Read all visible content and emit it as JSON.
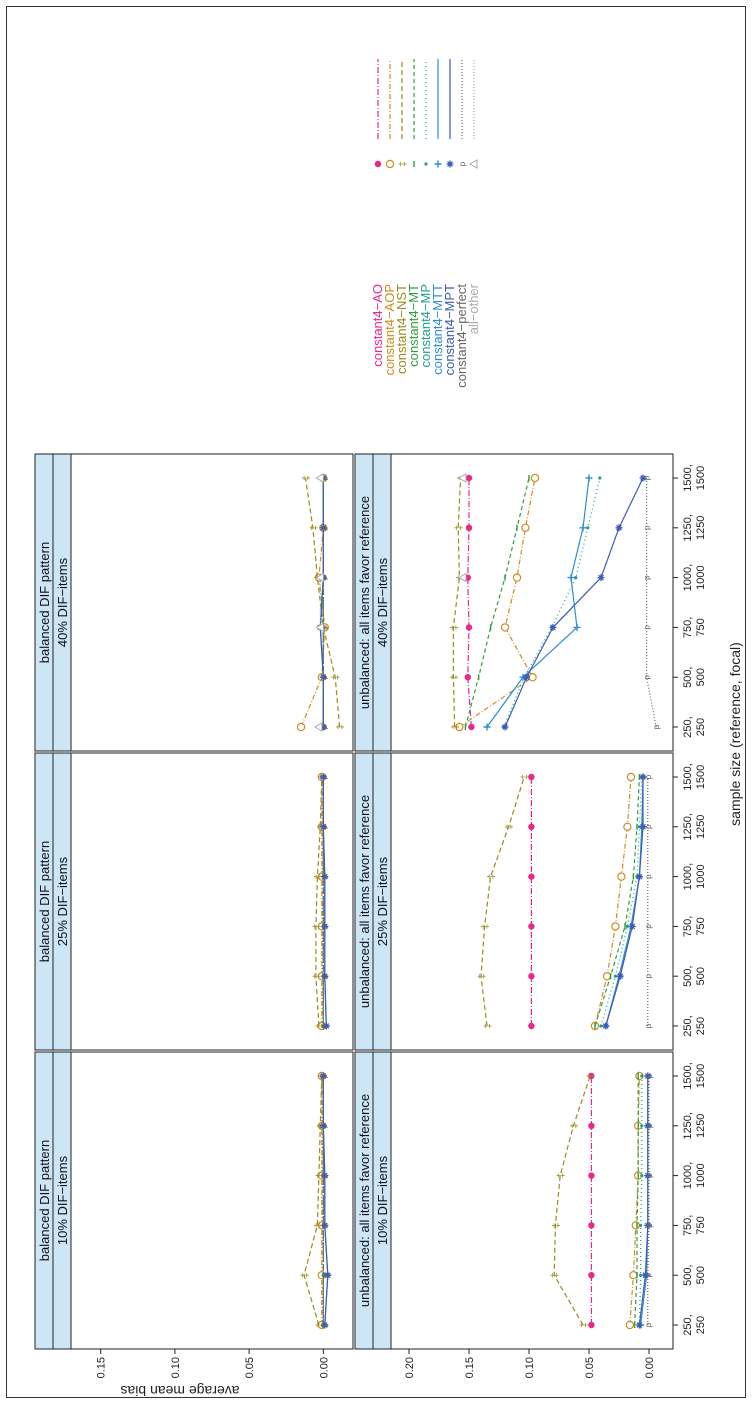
{
  "chart_data": {
    "type": "line",
    "orientation": "rotated 90 degrees counter-clockwise",
    "xlabel": "sample size (reference, focal)",
    "ylabel": "average mean bias",
    "x_tick_labels": [
      [
        "250,",
        "250"
      ],
      [
        "500,",
        "500"
      ],
      [
        "750,",
        "750"
      ],
      [
        "1000,",
        "1000"
      ],
      [
        "1250,",
        "1250"
      ],
      [
        "1500,",
        "1500"
      ]
    ],
    "y_tick_labels": {
      "balanced": [
        "0.00",
        "0.05",
        "0.10",
        "0.15"
      ],
      "unbalanced": [
        "0.00",
        "0.05",
        "0.10",
        "0.15",
        "0.20"
      ]
    },
    "ylim_balanced": [
      -0.02,
      0.17
    ],
    "ylim_unbalanced": [
      -0.02,
      0.215
    ],
    "legend": {
      "placement": "right",
      "entries": [
        {
          "label": "constant4−AO",
          "color": "#e7298a",
          "dash": "6,2,1,2",
          "symbol": "dot"
        },
        {
          "label": "constant4−AOP",
          "color": "#d18b1f",
          "dash": "5,2,1,2",
          "symbol": "circle"
        },
        {
          "label": "constant4−NST",
          "color": "#9a8a1a",
          "dash": "5,3",
          "symbol": "dagger"
        },
        {
          "label": "constant4−MT",
          "color": "#2e9e3a",
          "dash": "4,3",
          "symbol": "dash"
        },
        {
          "label": "constant4−MP",
          "color": "#1fa187",
          "dash": "1,3",
          "symbol": "point"
        },
        {
          "label": "constant4−MTT",
          "color": "#2c8fd1",
          "dash": "",
          "symbol": "plus"
        },
        {
          "label": "constant4−MPT",
          "color": "#3b5bb7",
          "dash": "",
          "symbol": "asterisk"
        },
        {
          "label": "constant4−perfect",
          "color": "#666666",
          "dash": "1,2",
          "symbol": "p"
        },
        {
          "label": "all−other",
          "color": "#aaaaaa",
          "dash": "1,2",
          "symbol": "triangle"
        }
      ]
    },
    "panels": [
      {
        "row": "balanced",
        "strip": [
          "balanced DIF pattern",
          "10% DIF−items"
        ],
        "series": {
          "constant4−AO": [
            0.0,
            0.0,
            0.0,
            0.0,
            0.0,
            0.0
          ],
          "constant4−AOP": [
            0.001,
            0.001,
            0.001,
            0.001,
            0.001,
            0.001
          ],
          "constant4−NST": [
            0.003,
            0.013,
            0.004,
            0.003,
            0.002,
            0.001
          ],
          "constant4−MT": [
            0.0,
            0.0,
            0.0,
            0.0,
            0.0,
            0.0
          ],
          "constant4−MP": [
            0.0,
            0.0,
            0.0,
            0.0,
            0.0,
            0.0
          ],
          "constant4−MTT": [
            -0.001,
            -0.003,
            -0.001,
            -0.001,
            0.0,
            0.0
          ],
          "constant4−MPT": [
            -0.001,
            -0.003,
            -0.001,
            -0.001,
            0.0,
            0.0
          ],
          "constant4−perfect": [
            0.0,
            0.0,
            0.0,
            0.0,
            0.0,
            0.0
          ]
        }
      },
      {
        "row": "balanced",
        "strip": [
          "balanced DIF pattern",
          "25% DIF−items"
        ],
        "series": {
          "constant4−AO": [
            0.0,
            0.0,
            0.0,
            0.0,
            0.0,
            0.0
          ],
          "constant4−AOP": [
            0.001,
            0.001,
            0.001,
            0.001,
            0.001,
            0.001
          ],
          "constant4−NST": [
            0.003,
            0.005,
            0.005,
            0.004,
            0.002,
            0.001
          ],
          "constant4−MT": [
            0.0,
            0.0,
            0.0,
            0.0,
            0.0,
            0.0
          ],
          "constant4−MP": [
            0.0,
            0.0,
            0.0,
            0.0,
            0.0,
            0.0
          ],
          "constant4−MTT": [
            -0.002,
            -0.001,
            -0.001,
            -0.001,
            0.0,
            0.0
          ],
          "constant4−MPT": [
            -0.002,
            -0.001,
            -0.001,
            -0.001,
            0.0,
            0.0
          ],
          "constant4−perfect": [
            0.0,
            0.0,
            0.0,
            0.0,
            0.0,
            0.0
          ]
        }
      },
      {
        "row": "balanced",
        "strip": [
          "balanced DIF pattern",
          "40% DIF−items"
        ],
        "series": {
          "constant4−AO": [
            0.0,
            0.0,
            0.0,
            0.0,
            0.0,
            0.0
          ],
          "constant4−AOP": [
            0.015,
            0.001,
            -0.001,
            0.003,
            0.0,
            0.0
          ],
          "constant4−NST": [
            -0.011,
            -0.008,
            0.0,
            0.004,
            0.007,
            0.012
          ],
          "constant4−MT": [
            0.0,
            0.0,
            0.0,
            0.0,
            0.0,
            0.0
          ],
          "constant4−MP": [
            0.0,
            0.0,
            0.0,
            0.0,
            0.0,
            0.0
          ],
          "constant4−MTT": [
            0.0,
            0.0,
            0.002,
            0.0,
            0.0,
            0.0
          ],
          "constant4−MPT": [
            0.0,
            0.0,
            0.002,
            0.0,
            0.0,
            0.0
          ],
          "constant4−perfect": [
            0.0,
            0.0,
            0.0,
            0.0,
            0.0,
            0.0
          ],
          "all−other": [
            0.003,
            null,
            0.002,
            0.002,
            null,
            0.002
          ]
        }
      },
      {
        "row": "unbalanced",
        "strip": [
          "unbalanced: all items favor reference",
          "10% DIF−items"
        ],
        "series": {
          "constant4−AO": [
            0.048,
            0.048,
            0.048,
            0.048,
            0.048,
            0.048
          ],
          "constant4−AOP": [
            0.016,
            0.013,
            0.011,
            0.009,
            0.009,
            0.008
          ],
          "constant4−NST": [
            0.055,
            0.079,
            0.078,
            0.074,
            0.063,
            0.049
          ],
          "constant4−MT": [
            0.012,
            0.01,
            0.01,
            0.009,
            0.009,
            0.009
          ],
          "constant4−MP": [
            0.008,
            0.007,
            0.007,
            0.006,
            0.006,
            0.006
          ],
          "constant4−MTT": [
            0.007,
            0.002,
            0.001,
            0.001,
            0.001,
            0.001
          ],
          "constant4−MPT": [
            0.008,
            0.003,
            0.001,
            0.001,
            0.001,
            0.001
          ],
          "constant4−perfect": [
            0.001,
            0.001,
            0.0,
            0.0,
            0.0,
            0.0
          ]
        }
      },
      {
        "row": "unbalanced",
        "strip": [
          "unbalanced: all items favor reference",
          "25% DIF−items"
        ],
        "series": {
          "constant4−AO": [
            0.098,
            0.098,
            0.098,
            0.098,
            0.098,
            0.098
          ],
          "constant4−AOP": [
            0.045,
            0.035,
            0.028,
            0.023,
            0.018,
            0.015
          ],
          "constant4−NST": [
            0.135,
            0.14,
            0.137,
            0.132,
            0.117,
            0.104
          ],
          "constant4−MT": [
            0.045,
            0.032,
            0.02,
            0.013,
            0.01,
            0.008
          ],
          "constant4−MP": [
            0.04,
            0.028,
            0.018,
            0.01,
            0.008,
            0.006
          ],
          "constant4−MTT": [
            0.036,
            0.025,
            0.015,
            0.008,
            0.006,
            0.005
          ],
          "constant4−MPT": [
            0.036,
            0.024,
            0.014,
            0.008,
            0.005,
            0.005
          ],
          "constant4−perfect": [
            0.001,
            0.001,
            0.001,
            0.001,
            0.001,
            0.001
          ]
        }
      },
      {
        "row": "unbalanced",
        "strip": [
          "unbalanced: all items favor reference",
          "40% DIF−items"
        ],
        "series": {
          "constant4−AO": [
            0.148,
            0.151,
            0.15,
            0.151,
            0.15,
            0.15
          ],
          "constant4−AOP": [
            0.158,
            0.097,
            0.12,
            0.11,
            0.103,
            0.095
          ],
          "constant4−NST": [
            0.162,
            0.163,
            0.163,
            0.158,
            0.159,
            0.157
          ],
          "constant4−MT": [
            0.153,
            0.142,
            0.132,
            0.12,
            0.11,
            0.1
          ],
          "constant4−MP": [
            0.121,
            0.104,
            0.081,
            0.061,
            0.051,
            0.041
          ],
          "constant4−MTT": [
            0.135,
            0.105,
            0.06,
            0.065,
            0.055,
            0.05
          ],
          "constant4−MPT": [
            0.12,
            0.102,
            0.08,
            0.04,
            0.025,
            0.005
          ],
          "constant4−perfect": [
            -0.006,
            0.002,
            0.002,
            0.002,
            0.002,
            0.002
          ],
          "all−other": [
            null,
            null,
            null,
            0.155,
            null,
            0.155
          ]
        }
      }
    ]
  }
}
